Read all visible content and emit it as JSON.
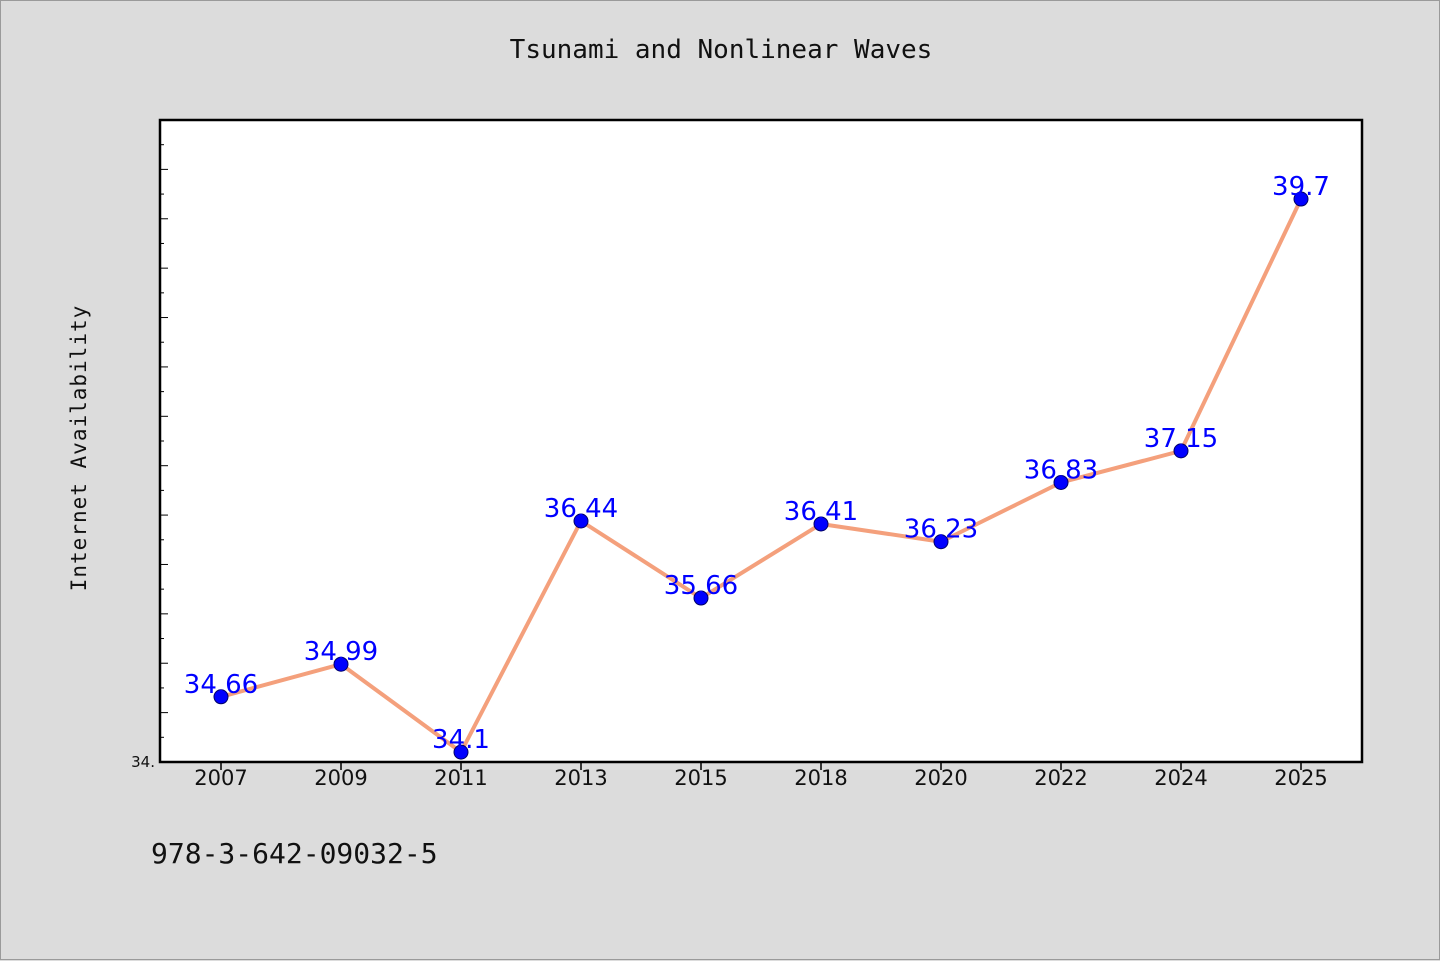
{
  "chart_data": {
    "type": "line",
    "title": "Tsunami and Nonlinear Waves",
    "xlabel": "",
    "ylabel": "Internet Availability",
    "categories": [
      "2007",
      "2009",
      "2011",
      "2013",
      "2015",
      "2018",
      "2020",
      "2022",
      "2024",
      "2025"
    ],
    "series": [
      {
        "values": [
          34.66,
          34.99,
          34.1,
          36.44,
          35.66,
          36.41,
          36.23,
          36.83,
          37.15,
          39.7
        ],
        "labels": [
          "34.66",
          "34.99",
          "34.1",
          "36.44",
          "35.66",
          "36.41",
          "36.23",
          "36.83",
          "37.15",
          "39.7"
        ]
      }
    ],
    "ylim": [
      34.0,
      40.5
    ],
    "y_min_tick_label": "34.",
    "grid": false,
    "legend": "none",
    "colors": {
      "line": "#f4a07c",
      "marker_fill": "#0000ff",
      "marker_edge": "#000066",
      "data_label": "#0000ff",
      "plot_background": "#ffffff",
      "page_background": "#dcdcdc"
    }
  },
  "footer": {
    "isbn": "978-3-642-09032-5"
  }
}
